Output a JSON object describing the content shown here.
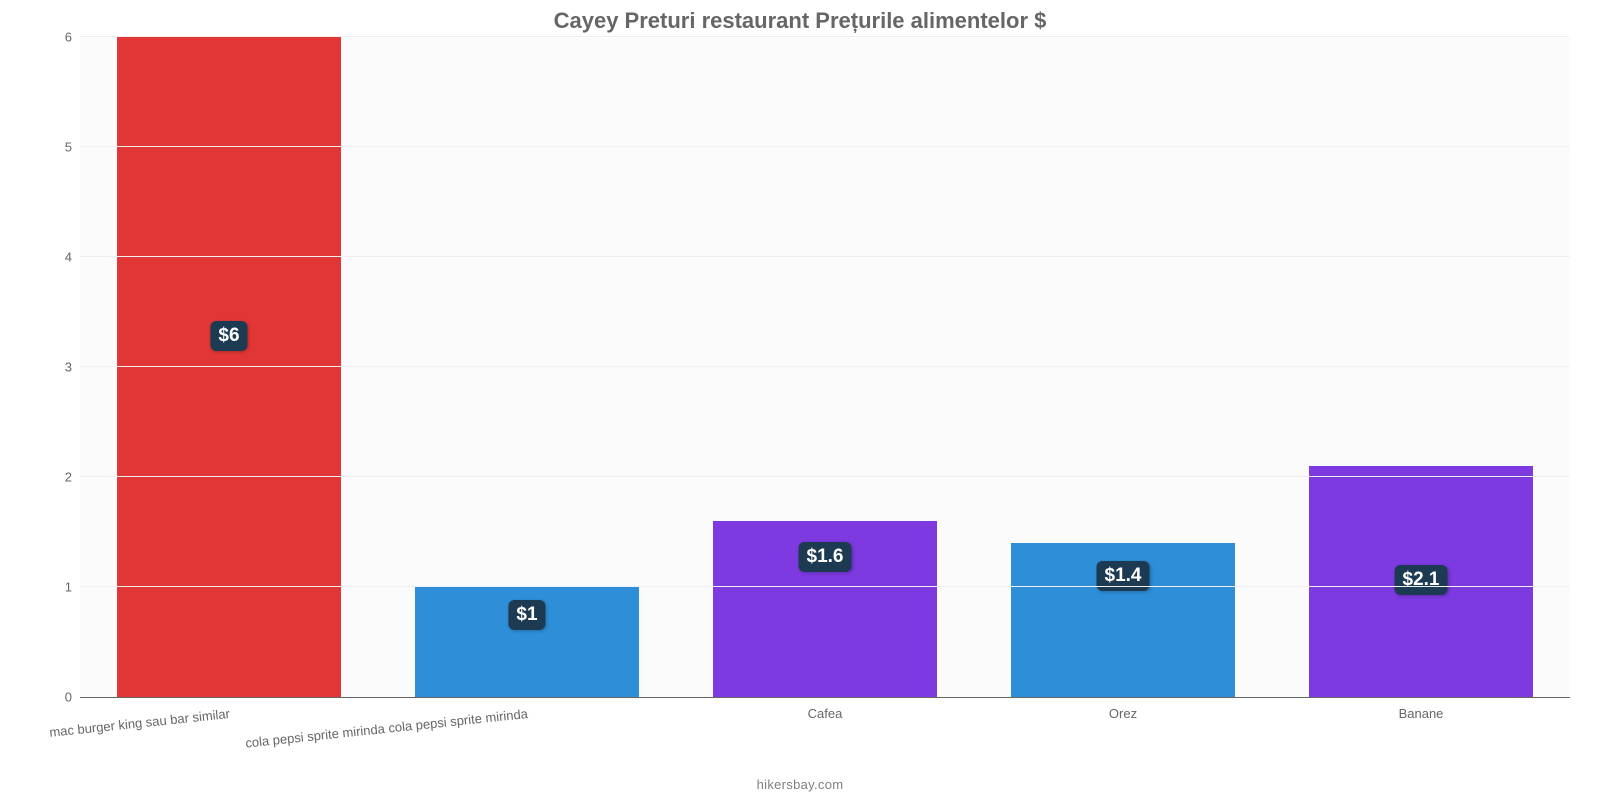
{
  "chart": {
    "type": "bar",
    "title": "Cayey Preturi restaurant Prețurile alimentelor $",
    "title_fontsize": 22,
    "title_color": "#666666",
    "subtitle": "hikersbay.com",
    "subtitle_color": "#808080",
    "background_color": "#ffffff",
    "plot_background_color": "#fbfbfb",
    "grid_color": "#f0f0f0",
    "axis_label_color": "#666666",
    "ylim": [
      0,
      6
    ],
    "ytick_step": 1,
    "yticks": [
      "0",
      "1",
      "2",
      "3",
      "4",
      "5",
      "6"
    ],
    "bar_width_ratio": 0.75,
    "badge_background": "#1c3a52",
    "categories": [
      "mac burger king sau bar similar",
      "cola pepsi sprite mirinda cola pepsi sprite mirinda",
      "Cafea",
      "Orez",
      "Banane"
    ],
    "values": [
      6,
      1,
      1.6,
      1.4,
      2.1
    ],
    "value_labels": [
      "$6",
      "$1",
      "$1.6",
      "$1.4",
      "$2.1"
    ],
    "bar_colors": [
      "#e23636",
      "#2e8fd8",
      "#7c3ae0",
      "#2e8fd8",
      "#7c3ae0"
    ],
    "x_label_rotated": [
      true,
      true,
      false,
      false,
      false
    ]
  }
}
